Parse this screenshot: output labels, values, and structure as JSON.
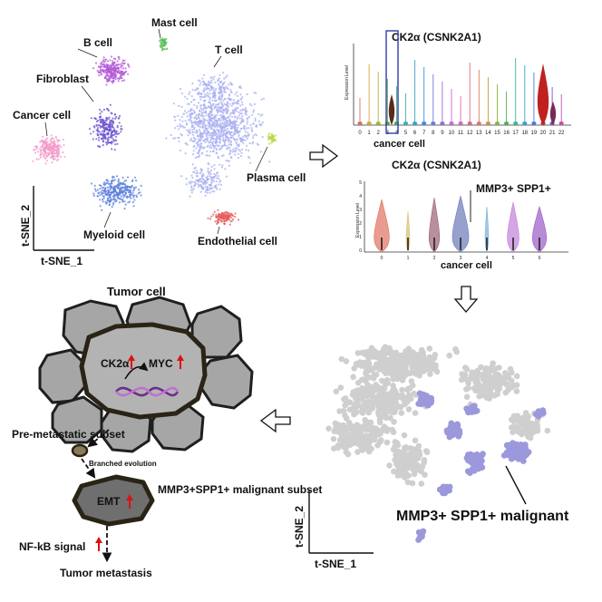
{
  "colors": {
    "b_cell": "#b159d8",
    "mast_cell": "#5cbf5a",
    "t_cell": "#a8aef0",
    "fibroblast": "#6b4fd0",
    "cancer_cell": "#f39ac8",
    "plasma_cell": "#b7d94a",
    "myeloid_cell": "#5b7fde",
    "endothelial_cell": "#e45a5a",
    "grey_dots": "#cfcfcf",
    "malignant_dots": "#9b98dc",
    "cell_fill": "#a6a6a6",
    "tumor_center_fill": "#b3b3b3",
    "arrow_red": "#dd1111"
  },
  "panel_tsne": {
    "cluster_labels": {
      "b_cell": "B cell",
      "mast_cell": "Mast cell",
      "t_cell": "T cell",
      "fibroblast": "Fibroblast",
      "cancer_cell": "Cancer cell",
      "plasma_cell": "Plasma cell",
      "myeloid_cell": "Myeloid cell",
      "endothelial_cell": "Endothelial cell"
    },
    "x_axis": "t-SNE_1",
    "y_axis": "t-SNE_2"
  },
  "panel_violin_clusters": {
    "title": "CK2α (CSNK2A1)",
    "ylabel": "Expression Level",
    "xlabel": "cancer cell",
    "clusters": [
      "0",
      "1",
      "2",
      "3",
      "4",
      "5",
      "6",
      "7",
      "8",
      "9",
      "10",
      "11",
      "12",
      "13",
      "14",
      "15",
      "16",
      "17",
      "18",
      "19",
      "20",
      "21",
      "22"
    ],
    "highlighted_cluster": "3"
  },
  "panel_violin_cancer": {
    "title": "CK2α (CSNK2A1)",
    "ylabel": "Expression Level",
    "xlabel": "cancer cell",
    "clusters": [
      "0",
      "1",
      "2",
      "3",
      "4",
      "5",
      "6"
    ],
    "y_ticks": [
      "0",
      "1",
      "2",
      "3",
      "4",
      "5"
    ],
    "callout": "MMP3+ SPP1+"
  },
  "panel_subcluster": {
    "label": "MMP3+ SPP1+ malignant",
    "x_axis": "t-SNE_1",
    "y_axis": "t-SNE_2"
  },
  "panel_model": {
    "title": "Tumor cell",
    "ck2a": "CK2α",
    "myc": "MYC",
    "pre_metastatic": "Pre-metastatic subset",
    "branched": "Branched evolution",
    "emt": "EMT",
    "malignant_subset": "MMP3+SPP1+ malignant subset",
    "nfkb": "NF-kB signal",
    "metastasis": "Tumor metastasis"
  }
}
